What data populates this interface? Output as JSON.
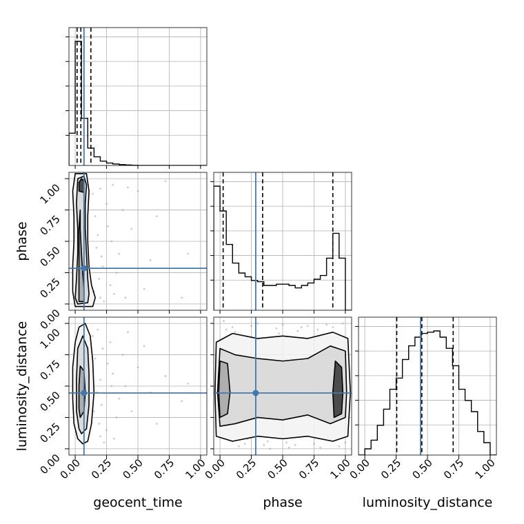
{
  "chart_data": {
    "type": "corner",
    "parameters": [
      "geocent_time",
      "phase",
      "luminosity_distance"
    ],
    "axis_labels": {
      "geocent_time": "geocent_time",
      "phase": "phase",
      "luminosity_distance": "luminosity_distance"
    },
    "tick_values": [
      0.0,
      0.25,
      0.5,
      0.75,
      1.0
    ],
    "tick_labels": [
      "0.00",
      "0.25",
      "0.50",
      "0.75",
      "1.00"
    ],
    "range": [
      -0.05,
      1.05
    ],
    "grid": true,
    "truth": {
      "geocent_time": 0.07,
      "phase": 0.285,
      "luminosity_distance": 0.445
    },
    "truth_color": "#4477aa",
    "quantiles": {
      "geocent_time": [
        0.015,
        0.045,
        0.125
      ],
      "phase": [
        0.025,
        0.34,
        0.9
      ],
      "luminosity_distance": [
        0.255,
        0.455,
        0.705
      ]
    },
    "marginals": {
      "geocent_time": {
        "bins": [
          -0.05,
          0.0,
          0.05,
          0.1,
          0.15,
          0.2,
          0.25,
          0.3,
          0.35,
          0.4,
          0.45,
          0.5,
          0.55,
          0.6,
          0.65,
          0.7,
          0.75,
          0.8,
          0.85,
          0.9,
          0.95,
          1.0,
          1.05
        ],
        "counts": [
          0.26,
          1.0,
          0.38,
          0.14,
          0.07,
          0.035,
          0.02,
          0.012,
          0.007,
          0.004,
          0.002,
          0.0,
          0.0,
          0.0,
          0.0,
          0.0,
          0.0,
          0.0,
          0.0,
          0.0,
          0.0,
          0.0
        ]
      },
      "phase": {
        "bins": [
          -0.05,
          0.0,
          0.05,
          0.1,
          0.15,
          0.2,
          0.25,
          0.3,
          0.35,
          0.4,
          0.45,
          0.5,
          0.55,
          0.6,
          0.65,
          0.7,
          0.75,
          0.8,
          0.85,
          0.9,
          0.95,
          1.0,
          1.05
        ],
        "counts": [
          1.0,
          0.8,
          0.53,
          0.38,
          0.3,
          0.27,
          0.24,
          0.23,
          0.2,
          0.2,
          0.21,
          0.21,
          0.2,
          0.18,
          0.2,
          0.22,
          0.25,
          0.28,
          0.42,
          0.62,
          0.42,
          0.0
        ]
      },
      "luminosity_distance": {
        "bins": [
          -0.05,
          0.0,
          0.05,
          0.1,
          0.15,
          0.2,
          0.25,
          0.3,
          0.35,
          0.4,
          0.45,
          0.5,
          0.55,
          0.6,
          0.65,
          0.7,
          0.75,
          0.8,
          0.85,
          0.9,
          0.95,
          1.0,
          1.05
        ],
        "counts": [
          0.0,
          0.05,
          0.12,
          0.24,
          0.37,
          0.53,
          0.62,
          0.77,
          0.88,
          0.95,
          0.98,
          0.99,
          1.0,
          0.95,
          0.86,
          0.72,
          0.53,
          0.44,
          0.35,
          0.19,
          0.1,
          0.0
        ]
      }
    },
    "contours": {
      "phase_vs_geocent_time": {
        "x_param": "geocent_time",
        "y_param": "phase",
        "levels": [
          [
            [
              0.0,
              -0.02
            ],
            [
              0.14,
              -0.02
            ],
            [
              0.16,
              0.05
            ],
            [
              0.13,
              0.15
            ],
            [
              0.11,
              0.3
            ],
            [
              0.1,
              0.5
            ],
            [
              0.1,
              0.7
            ],
            [
              0.11,
              0.9
            ],
            [
              0.09,
              1.04
            ],
            [
              0.0,
              1.04
            ],
            [
              -0.02,
              0.9
            ],
            [
              -0.01,
              0.7
            ],
            [
              -0.01,
              0.5
            ],
            [
              -0.02,
              0.3
            ],
            [
              -0.02,
              0.1
            ]
          ],
          [
            [
              0.02,
              0.0
            ],
            [
              0.1,
              0.01
            ],
            [
              0.11,
              0.08
            ],
            [
              0.1,
              0.2
            ],
            [
              0.09,
              0.4
            ],
            [
              0.08,
              0.6
            ],
            [
              0.08,
              0.8
            ],
            [
              0.09,
              0.95
            ],
            [
              0.07,
              1.02
            ],
            [
              0.02,
              1.0
            ],
            [
              0.01,
              0.8
            ],
            [
              0.02,
              0.6
            ],
            [
              0.02,
              0.4
            ],
            [
              0.01,
              0.2
            ],
            [
              0.0,
              0.05
            ]
          ],
          [
            [
              0.03,
              0.02
            ],
            [
              0.07,
              0.02
            ],
            [
              0.07,
              0.12
            ],
            [
              0.06,
              0.25
            ],
            [
              0.05,
              0.4
            ],
            [
              0.04,
              0.6
            ],
            [
              0.04,
              0.75
            ],
            [
              0.03,
              0.6
            ],
            [
              0.03,
              0.4
            ],
            [
              0.03,
              0.2
            ]
          ],
          [
            [
              0.03,
              0.9
            ],
            [
              0.07,
              0.89
            ],
            [
              0.07,
              0.98
            ],
            [
              0.05,
              1.0
            ],
            [
              0.03,
              0.97
            ]
          ]
        ]
      },
      "luminosity_distance_vs_geocent_time": {
        "x_param": "geocent_time",
        "y_param": "luminosity_distance",
        "levels": [
          [
            [
              0.06,
              0.04
            ],
            [
              0.1,
              0.06
            ],
            [
              0.13,
              0.2
            ],
            [
              0.15,
              0.45
            ],
            [
              0.14,
              0.7
            ],
            [
              0.12,
              0.9
            ],
            [
              0.08,
              1.0
            ],
            [
              0.03,
              0.97
            ],
            [
              0.0,
              0.85
            ],
            [
              -0.02,
              0.65
            ],
            [
              -0.02,
              0.4
            ],
            [
              -0.01,
              0.2
            ],
            [
              0.02,
              0.08
            ]
          ],
          [
            [
              0.05,
              0.12
            ],
            [
              0.09,
              0.16
            ],
            [
              0.11,
              0.35
            ],
            [
              0.11,
              0.6
            ],
            [
              0.1,
              0.8
            ],
            [
              0.06,
              0.9
            ],
            [
              0.02,
              0.8
            ],
            [
              0.01,
              0.55
            ],
            [
              0.01,
              0.3
            ],
            [
              0.03,
              0.16
            ]
          ],
          [
            [
              0.04,
              0.25
            ],
            [
              0.07,
              0.3
            ],
            [
              0.08,
              0.45
            ],
            [
              0.07,
              0.62
            ],
            [
              0.04,
              0.66
            ],
            [
              0.03,
              0.5
            ],
            [
              0.03,
              0.32
            ]
          ]
        ]
      },
      "luminosity_distance_vs_phase": {
        "x_param": "phase",
        "y_param": "luminosity_distance",
        "levels": [
          [
            [
              -0.03,
              0.1
            ],
            [
              0.1,
              0.06
            ],
            [
              0.3,
              0.1
            ],
            [
              0.5,
              0.08
            ],
            [
              0.7,
              0.1
            ],
            [
              0.9,
              0.06
            ],
            [
              1.02,
              0.1
            ],
            [
              1.04,
              0.45
            ],
            [
              1.02,
              0.88
            ],
            [
              0.9,
              0.93
            ],
            [
              0.7,
              0.88
            ],
            [
              0.5,
              0.9
            ],
            [
              0.3,
              0.88
            ],
            [
              0.1,
              0.92
            ],
            [
              -0.03,
              0.85
            ],
            [
              -0.04,
              0.45
            ]
          ],
          [
            [
              0.0,
              0.18
            ],
            [
              0.12,
              0.2
            ],
            [
              0.3,
              0.25
            ],
            [
              0.5,
              0.23
            ],
            [
              0.7,
              0.27
            ],
            [
              0.88,
              0.2
            ],
            [
              1.0,
              0.25
            ],
            [
              1.01,
              0.45
            ],
            [
              1.0,
              0.78
            ],
            [
              0.88,
              0.82
            ],
            [
              0.7,
              0.72
            ],
            [
              0.5,
              0.7
            ],
            [
              0.3,
              0.72
            ],
            [
              0.12,
              0.75
            ],
            [
              0.0,
              0.8
            ],
            [
              -0.02,
              0.45
            ]
          ],
          [
            [
              0.0,
              0.25
            ],
            [
              0.06,
              0.28
            ],
            [
              0.08,
              0.45
            ],
            [
              0.06,
              0.68
            ],
            [
              0.0,
              0.7
            ],
            [
              -0.01,
              0.45
            ]
          ],
          [
            [
              0.91,
              0.25
            ],
            [
              0.97,
              0.28
            ],
            [
              0.98,
              0.45
            ],
            [
              0.97,
              0.65
            ],
            [
              0.92,
              0.7
            ],
            [
              0.9,
              0.45
            ]
          ]
        ]
      }
    },
    "scatter_points": {
      "phase_vs_geocent_time": [
        [
          0.15,
          0.1
        ],
        [
          0.2,
          0.05
        ],
        [
          0.22,
          0.3
        ],
        [
          0.18,
          0.55
        ],
        [
          0.25,
          0.8
        ],
        [
          0.3,
          0.95
        ],
        [
          0.35,
          0.4
        ],
        [
          0.16,
          0.7
        ],
        [
          0.19,
          0.2
        ],
        [
          0.28,
          0.15
        ],
        [
          0.4,
          0.05
        ],
        [
          0.45,
          0.6
        ],
        [
          0.5,
          0.9
        ],
        [
          0.6,
          0.35
        ],
        [
          0.72,
          0.98
        ],
        [
          0.85,
          0.05
        ],
        [
          0.2,
          0.92
        ],
        [
          0.17,
          0.45
        ],
        [
          0.26,
          0.62
        ],
        [
          0.33,
          0.25
        ],
        [
          0.38,
          0.75
        ],
        [
          0.14,
          0.88
        ],
        [
          0.23,
          0.02
        ],
        [
          0.29,
          0.5
        ],
        [
          0.55,
          0.12
        ],
        [
          0.65,
          0.7
        ],
        [
          0.9,
          0.4
        ],
        [
          0.21,
          0.38
        ],
        [
          0.31,
          0.08
        ],
        [
          0.42,
          0.93
        ]
      ],
      "luminosity_distance_vs_geocent_time": [
        [
          0.15,
          0.3
        ],
        [
          0.2,
          0.55
        ],
        [
          0.22,
          0.8
        ],
        [
          0.18,
          0.95
        ],
        [
          0.25,
          0.15
        ],
        [
          0.3,
          0.6
        ],
        [
          0.35,
          0.4
        ],
        [
          0.16,
          0.72
        ],
        [
          0.19,
          0.2
        ],
        [
          0.28,
          0.85
        ],
        [
          0.4,
          0.5
        ],
        [
          0.45,
          0.3
        ],
        [
          0.5,
          0.65
        ],
        [
          0.6,
          0.45
        ],
        [
          0.72,
          0.58
        ],
        [
          0.85,
          0.38
        ],
        [
          0.2,
          0.1
        ],
        [
          0.17,
          0.45
        ],
        [
          0.26,
          0.68
        ],
        [
          0.33,
          0.25
        ],
        [
          0.38,
          0.75
        ],
        [
          0.14,
          0.9
        ],
        [
          0.23,
          0.05
        ],
        [
          0.29,
          0.5
        ],
        [
          0.55,
          0.82
        ],
        [
          0.65,
          0.2
        ],
        [
          0.9,
          0.52
        ],
        [
          0.21,
          0.35
        ],
        [
          0.31,
          0.08
        ],
        [
          0.42,
          0.93
        ]
      ],
      "luminosity_distance_vs_phase": [
        [
          0.05,
          0.95
        ],
        [
          0.15,
          0.02
        ],
        [
          0.25,
          0.98
        ],
        [
          0.35,
          0.03
        ],
        [
          0.45,
          0.96
        ],
        [
          0.55,
          0.01
        ],
        [
          0.65,
          0.97
        ],
        [
          0.75,
          0.04
        ],
        [
          0.85,
          0.99
        ],
        [
          0.95,
          0.02
        ],
        [
          0.1,
          0.97
        ],
        [
          0.2,
          0.04
        ],
        [
          0.3,
          1.0
        ],
        [
          0.4,
          0.0
        ],
        [
          0.5,
          0.99
        ],
        [
          0.6,
          0.03
        ],
        [
          0.7,
          0.98
        ],
        [
          0.8,
          0.01
        ],
        [
          0.9,
          0.97
        ],
        [
          1.0,
          0.05
        ],
        [
          0.12,
          0.93
        ],
        [
          0.38,
          0.06
        ],
        [
          0.62,
          0.94
        ],
        [
          0.88,
          0.07
        ],
        [
          0.47,
          0.92
        ],
        [
          0.53,
          0.05
        ],
        [
          0.22,
          0.08
        ],
        [
          0.78,
          0.95
        ],
        [
          0.03,
          1.02
        ],
        [
          0.98,
          1.0
        ]
      ]
    }
  }
}
